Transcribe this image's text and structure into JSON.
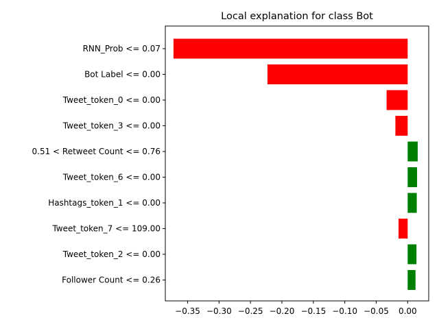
{
  "chart_data": {
    "type": "bar",
    "orientation": "horizontal",
    "title": "Local explanation for class Bot",
    "xlabel": "",
    "ylabel": "",
    "xlim": [
      -0.3855,
      0.0335
    ],
    "grid": false,
    "legend": false,
    "colors": {
      "positive": "#008000",
      "negative": "#ff0000"
    },
    "categories": [
      "RNN_Prob <= 0.07",
      "Bot Label <= 0.00",
      "Tweet_token_0 <= 0.00",
      "Tweet_token_3 <= 0.00",
      "0.51 < Retweet Count <= 0.76",
      "Tweet_token_6 <= 0.00",
      "Hashtags_token_1 <= 0.00",
      "Tweet_token_7 <= 109.00",
      "Tweet_token_2 <= 0.00",
      "Follower Count <= 0.26"
    ],
    "values": [
      -0.3725,
      -0.223,
      -0.0335,
      -0.0195,
      0.016,
      0.015,
      0.0145,
      -0.0145,
      0.014,
      0.0125
    ],
    "xticks": [
      {
        "value": -0.35,
        "label": "−0.35"
      },
      {
        "value": -0.3,
        "label": "−0.30"
      },
      {
        "value": -0.25,
        "label": "−0.25"
      },
      {
        "value": -0.2,
        "label": "−0.20"
      },
      {
        "value": -0.15,
        "label": "−0.15"
      },
      {
        "value": -0.1,
        "label": "−0.10"
      },
      {
        "value": -0.05,
        "label": "−0.05"
      },
      {
        "value": 0.0,
        "label": "0.00"
      }
    ]
  }
}
